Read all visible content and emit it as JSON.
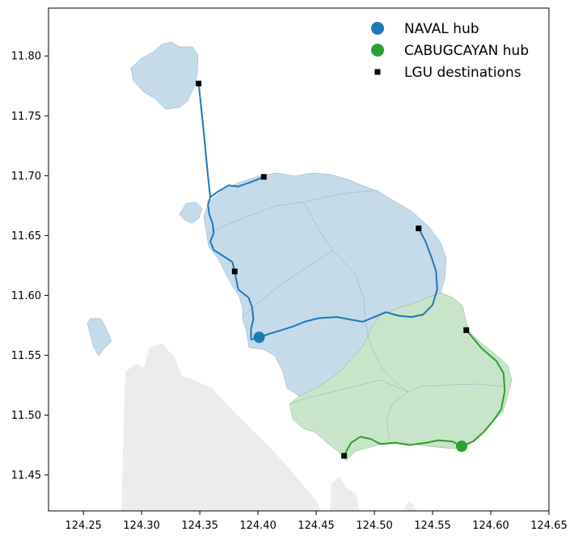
{
  "chart_data": {
    "type": "map",
    "xlim": [
      124.22,
      124.65
    ],
    "ylim": [
      11.42,
      11.84
    ],
    "x_ticks": [
      "124.25",
      "124.30",
      "124.35",
      "124.40",
      "124.45",
      "124.50",
      "124.55",
      "124.60",
      "124.65"
    ],
    "x_tick_values": [
      124.25,
      124.3,
      124.35,
      124.4,
      124.45,
      124.5,
      124.55,
      124.6,
      124.65
    ],
    "y_ticks": [
      "11.45",
      "11.50",
      "11.55",
      "11.60",
      "11.65",
      "11.70",
      "11.75",
      "11.80"
    ],
    "y_tick_values": [
      11.45,
      11.5,
      11.55,
      11.6,
      11.65,
      11.7,
      11.75,
      11.8
    ],
    "legend": {
      "placement": "top-right",
      "entries": [
        {
          "label": "NAVAL hub",
          "color": "#1f77b4",
          "marker": "circle"
        },
        {
          "label": "CABUGCAYAN hub",
          "color": "#2ca02c",
          "marker": "circle"
        },
        {
          "label": "LGU destinations",
          "color": "#000000",
          "marker": "square"
        }
      ]
    },
    "colors": {
      "naval_region": "#c6dbea",
      "cabugcayan_region": "#c9e5c9",
      "background_land": "#ececec",
      "naval_route": "#1f77b4",
      "cabugcayan_route": "#2ca02c"
    },
    "hubs": [
      {
        "name": "NAVAL hub",
        "lon": 124.401,
        "lat": 11.565
      },
      {
        "name": "CABUGCAYAN hub",
        "lon": 124.575,
        "lat": 11.474
      }
    ],
    "destinations": [
      {
        "lon": 124.349,
        "lat": 11.777
      },
      {
        "lon": 124.405,
        "lat": 11.699
      },
      {
        "lon": 124.538,
        "lat": 11.656
      },
      {
        "lon": 124.38,
        "lat": 11.62
      },
      {
        "lon": 124.579,
        "lat": 11.571
      },
      {
        "lon": 124.474,
        "lat": 11.466
      }
    ],
    "routes": [
      {
        "hub": "NAVAL hub",
        "points": [
          [
            124.401,
            11.565
          ],
          [
            124.394,
            11.563
          ],
          [
            124.394,
            11.572
          ],
          [
            124.396,
            11.58
          ],
          [
            124.395,
            11.59
          ],
          [
            124.392,
            11.598
          ],
          [
            124.383,
            11.605
          ],
          [
            124.381,
            11.615
          ],
          [
            124.38,
            11.62
          ],
          [
            124.378,
            11.628
          ],
          [
            124.37,
            11.633
          ],
          [
            124.362,
            11.638
          ],
          [
            124.359,
            11.645
          ],
          [
            124.362,
            11.652
          ],
          [
            124.361,
            11.66
          ],
          [
            124.358,
            11.668
          ],
          [
            124.357,
            11.676
          ],
          [
            124.359,
            11.682
          ],
          [
            124.357,
            11.7
          ],
          [
            124.353,
            11.74
          ],
          [
            124.349,
            11.777
          ]
        ]
      },
      {
        "hub": "NAVAL hub",
        "points": [
          [
            124.359,
            11.682
          ],
          [
            124.366,
            11.687
          ],
          [
            124.375,
            11.692
          ],
          [
            124.383,
            11.691
          ],
          [
            124.395,
            11.695
          ],
          [
            124.405,
            11.699
          ]
        ]
      },
      {
        "hub": "NAVAL hub",
        "points": [
          [
            124.401,
            11.565
          ],
          [
            124.41,
            11.568
          ],
          [
            124.42,
            11.571
          ],
          [
            124.43,
            11.574
          ],
          [
            124.44,
            11.578
          ],
          [
            124.452,
            11.581
          ],
          [
            124.468,
            11.582
          ],
          [
            124.478,
            11.58
          ],
          [
            124.49,
            11.578
          ],
          [
            124.5,
            11.582
          ],
          [
            124.51,
            11.586
          ],
          [
            124.521,
            11.583
          ],
          [
            124.532,
            11.582
          ],
          [
            124.542,
            11.584
          ],
          [
            124.55,
            11.592
          ],
          [
            124.554,
            11.605
          ],
          [
            124.553,
            11.62
          ],
          [
            124.549,
            11.632
          ],
          [
            124.544,
            11.645
          ],
          [
            124.538,
            11.656
          ]
        ]
      },
      {
        "hub": "CABUGCAYAN hub",
        "points": [
          [
            124.575,
            11.474
          ],
          [
            124.585,
            11.478
          ],
          [
            124.594,
            11.486
          ],
          [
            124.602,
            11.495
          ],
          [
            124.609,
            11.505
          ],
          [
            124.612,
            11.52
          ],
          [
            124.611,
            11.535
          ],
          [
            124.605,
            11.545
          ],
          [
            124.592,
            11.556
          ],
          [
            124.579,
            11.571
          ]
        ]
      },
      {
        "hub": "CABUGCAYAN hub",
        "points": [
          [
            124.575,
            11.474
          ],
          [
            124.567,
            11.478
          ],
          [
            124.555,
            11.479
          ],
          [
            124.545,
            11.477
          ],
          [
            124.53,
            11.475
          ],
          [
            124.518,
            11.477
          ],
          [
            124.505,
            11.476
          ],
          [
            124.497,
            11.48
          ],
          [
            124.488,
            11.482
          ],
          [
            124.48,
            11.477
          ],
          [
            124.476,
            11.47
          ],
          [
            124.474,
            11.466
          ]
        ]
      }
    ]
  }
}
